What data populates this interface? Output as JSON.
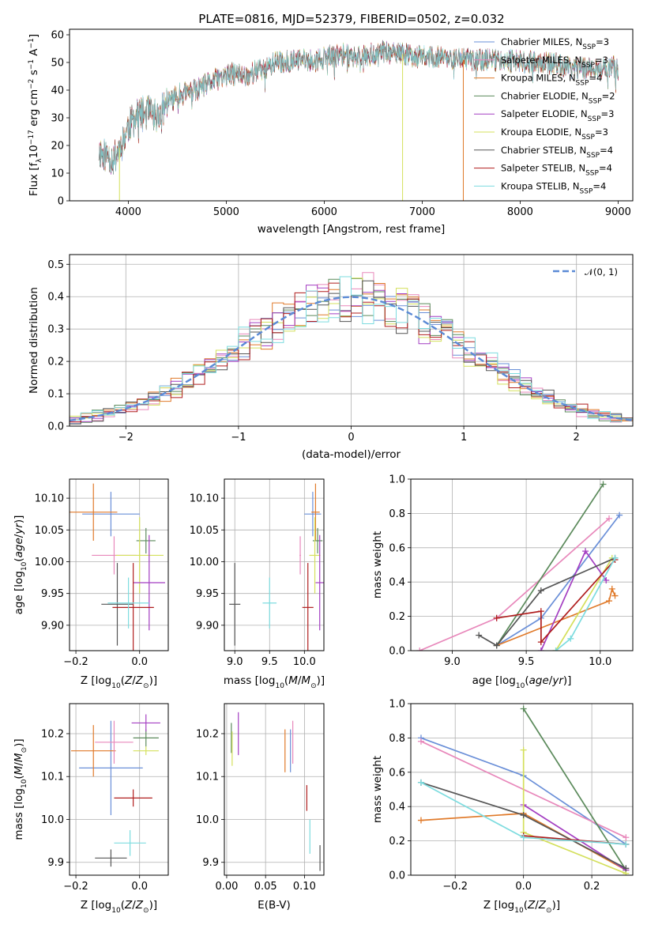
{
  "figure_title": "PLATE=0816, MJD=52379, FIBERID=0502, z=0.032",
  "colors": {
    "Chabrier MILES": "#6a8fd8",
    "Salpeter MILES": "#e888bb",
    "Kroupa MILES": "#e07a2a",
    "Chabrier ELODIE": "#5b8a5b",
    "Salpeter ELODIE": "#a43fc2",
    "Kroupa ELODIE": "#d4e05c",
    "Chabrier STELIB": "#555555",
    "Salpeter STELIB": "#b01e1e",
    "Kroupa STELIB": "#7ddcdf"
  },
  "chart_data": [
    {
      "id": "spectrum",
      "type": "line",
      "title": "PLATE=0816, MJD=52379, FIBERID=0502, z=0.032",
      "xlabel": "wavelength [Angstrom, rest frame]",
      "ylabel": "Flux [fλ10⁻¹⁷ erg cm⁻² s⁻¹ A⁻¹]",
      "xlim": [
        3400,
        9150
      ],
      "ylim": [
        0,
        62
      ],
      "xticks": [
        4000,
        5000,
        6000,
        7000,
        8000,
        9000
      ],
      "yticks": [
        0,
        10,
        20,
        30,
        40,
        50,
        60
      ],
      "legend_position": "upper right",
      "legend": [
        {
          "label": "Chabrier MILES, N",
          "sub": "SSP",
          "suffix": "=3"
        },
        {
          "label": "Salpeter MILES, N",
          "sub": "SSP",
          "suffix": "=3"
        },
        {
          "label": "Kroupa MILES, N",
          "sub": "SSP",
          "suffix": "=4"
        },
        {
          "label": "Chabrier ELODIE, N",
          "sub": "SSP",
          "suffix": "=2"
        },
        {
          "label": "Salpeter ELODIE, N",
          "sub": "SSP",
          "suffix": "=3"
        },
        {
          "label": "Kroupa ELODIE, N",
          "sub": "SSP",
          "suffix": "=3"
        },
        {
          "label": "Chabrier STELIB, N",
          "sub": "SSP",
          "suffix": "=4"
        },
        {
          "label": "Salpeter STELIB, N",
          "sub": "SSP",
          "suffix": "=4"
        },
        {
          "label": "Kroupa STELIB, N",
          "sub": "SSP",
          "suffix": "=4"
        }
      ],
      "continuum": [
        [
          3700,
          18
        ],
        [
          3850,
          15
        ],
        [
          3950,
          22
        ],
        [
          4000,
          27
        ],
        [
          4100,
          31
        ],
        [
          4200,
          32
        ],
        [
          4300,
          30
        ],
        [
          4400,
          36
        ],
        [
          4500,
          38
        ],
        [
          4600,
          39
        ],
        [
          4700,
          40
        ],
        [
          4800,
          42
        ],
        [
          4900,
          44
        ],
        [
          5000,
          45
        ],
        [
          5100,
          46
        ],
        [
          5200,
          45
        ],
        [
          5300,
          47
        ],
        [
          5400,
          48
        ],
        [
          5500,
          50
        ],
        [
          5600,
          50
        ],
        [
          5700,
          51
        ],
        [
          5800,
          51
        ],
        [
          5900,
          50
        ],
        [
          6000,
          52
        ],
        [
          6100,
          52
        ],
        [
          6200,
          53
        ],
        [
          6300,
          52
        ],
        [
          6400,
          53
        ],
        [
          6500,
          53
        ],
        [
          6600,
          54
        ],
        [
          6700,
          53
        ],
        [
          6800,
          53
        ],
        [
          7000,
          52
        ],
        [
          7200,
          52
        ],
        [
          7400,
          51
        ],
        [
          7600,
          51
        ],
        [
          7800,
          51
        ],
        [
          8000,
          50
        ],
        [
          8200,
          50
        ],
        [
          8400,
          49
        ],
        [
          8600,
          48
        ],
        [
          8800,
          48
        ],
        [
          9000,
          48
        ]
      ],
      "drop_features": [
        {
          "series": "Kroupa ELODIE",
          "x": 3910
        },
        {
          "series": "Kroupa ELODIE",
          "x": 6800
        },
        {
          "series": "Kroupa MILES",
          "x": 7420
        }
      ]
    },
    {
      "id": "residuals",
      "type": "histogram",
      "xlabel": "(data-model)/error",
      "ylabel": "Normed distribution",
      "xlim": [
        -2.5,
        2.5
      ],
      "ylim": [
        0,
        0.53
      ],
      "xticks": [
        -2,
        -1,
        0,
        1,
        2
      ],
      "yticks": [
        0.0,
        0.1,
        0.2,
        0.3,
        0.4,
        0.5
      ],
      "bin_width": 0.1,
      "legend_position": "upper right",
      "reference_curve": {
        "label": "𝒩(0, 1)",
        "mean": 0,
        "sigma": 1
      },
      "series_note": "one step histogram per fit, colors as in legend of spectrum panel"
    },
    {
      "id": "age_vs_Z",
      "type": "scatter",
      "xlabel": "Z [log10(Z/Z⊙)]",
      "ylabel": "age  [log10(age/yr)]",
      "xlim": [
        -0.22,
        0.09
      ],
      "ylim": [
        9.86,
        10.13
      ],
      "xticks": [
        -0.2,
        0.0
      ],
      "yticks": [
        9.9,
        9.95,
        10.0,
        10.05,
        10.1
      ],
      "points": [
        {
          "series": "Chabrier MILES",
          "x": -0.09,
          "y": 10.075,
          "xerr": 0.09,
          "yerr": 0.035
        },
        {
          "series": "Kroupa MILES",
          "x": -0.145,
          "y": 10.078,
          "xerr": 0.075,
          "yerr": 0.045
        },
        {
          "series": "Salpeter MILES",
          "x": -0.08,
          "y": 10.01,
          "xerr": 0.07,
          "yerr": 0.03
        },
        {
          "series": "Chabrier ELODIE",
          "x": 0.02,
          "y": 10.033,
          "xerr": 0.03,
          "yerr": 0.02
        },
        {
          "series": "Kroupa ELODIE",
          "x": 0.0,
          "y": 10.01,
          "xerr": 0.075,
          "yerr": 0.06
        },
        {
          "series": "Salpeter ELODIE",
          "x": 0.03,
          "y": 9.967,
          "xerr": 0.05,
          "yerr": 0.075
        },
        {
          "series": "Chabrier STELIB",
          "x": -0.07,
          "y": 9.933,
          "xerr": 0.05,
          "yerr": 0.065
        },
        {
          "series": "Salpeter STELIB",
          "x": -0.02,
          "y": 9.928,
          "xerr": 0.065,
          "yerr": 0.07
        },
        {
          "series": "Kroupa STELIB",
          "x": -0.035,
          "y": 9.935,
          "xerr": 0.065,
          "yerr": 0.04
        }
      ]
    },
    {
      "id": "age_vs_mass",
      "type": "scatter",
      "xlabel": "mass [log10(M/M⊙)]",
      "ylabel": "",
      "xlim": [
        8.85,
        10.28
      ],
      "ylim": [
        9.86,
        10.13
      ],
      "xticks": [
        9.0,
        9.5,
        10.0
      ],
      "yticks": [
        9.9,
        9.95,
        10.0,
        10.05,
        10.1
      ],
      "points": [
        {
          "series": "Chabrier MILES",
          "x": 10.12,
          "y": 10.075,
          "xerr": 0.12,
          "yerr": 0.035
        },
        {
          "series": "Kroupa MILES",
          "x": 10.16,
          "y": 10.078,
          "xerr": 0.06,
          "yerr": 0.045
        },
        {
          "series": "Salpeter MILES",
          "x": 9.94,
          "y": 10.01,
          "xerr": 0.01,
          "yerr": 0.03
        },
        {
          "series": "Chabrier ELODIE",
          "x": 10.19,
          "y": 10.033,
          "xerr": 0.07,
          "yerr": 0.02
        },
        {
          "series": "Kroupa ELODIE",
          "x": 10.15,
          "y": 10.01,
          "xerr": 0.08,
          "yerr": 0.06
        },
        {
          "series": "Salpeter ELODIE",
          "x": 10.22,
          "y": 9.967,
          "xerr": 0.06,
          "yerr": 0.075
        },
        {
          "series": "Chabrier STELIB",
          "x": 9.0,
          "y": 9.933,
          "xerr": 0.08,
          "yerr": 0.065
        },
        {
          "series": "Salpeter STELIB",
          "x": 10.05,
          "y": 9.928,
          "xerr": 0.08,
          "yerr": 0.07
        },
        {
          "series": "Kroupa STELIB",
          "x": 9.5,
          "y": 9.935,
          "xerr": 0.1,
          "yerr": 0.04
        }
      ]
    },
    {
      "id": "weight_vs_age",
      "type": "line",
      "xlabel": "age  [log10(age/yr)]",
      "ylabel": "mass weight",
      "xlim": [
        8.72,
        10.22
      ],
      "ylim": [
        0.0,
        1.0
      ],
      "xticks": [
        9.0,
        9.5,
        10.0
      ],
      "yticks": [
        0.0,
        0.2,
        0.4,
        0.6,
        0.8,
        1.0
      ],
      "series": [
        {
          "name": "Chabrier MILES",
          "x": [
            9.3,
            9.6,
            10.13
          ],
          "y": [
            0.03,
            0.19,
            0.79
          ]
        },
        {
          "name": "Salpeter MILES",
          "x": [
            8.78,
            9.3,
            10.06
          ],
          "y": [
            0.0,
            0.19,
            0.77
          ]
        },
        {
          "name": "Kroupa MILES",
          "x": [
            9.3,
            10.06,
            10.08,
            10.1
          ],
          "y": [
            0.03,
            0.29,
            0.36,
            0.32
          ]
        },
        {
          "name": "Chabrier ELODIE",
          "x": [
            9.3,
            10.02
          ],
          "y": [
            0.03,
            0.97
          ]
        },
        {
          "name": "Salpeter ELODIE",
          "x": [
            9.6,
            9.9,
            10.04
          ],
          "y": [
            0.0,
            0.58,
            0.41
          ]
        },
        {
          "name": "Kroupa ELODIE",
          "x": [
            9.7,
            10.08
          ],
          "y": [
            0.0,
            0.54
          ]
        },
        {
          "name": "Chabrier STELIB",
          "x": [
            9.18,
            9.3,
            9.6,
            10.1
          ],
          "y": [
            0.09,
            0.03,
            0.35,
            0.54
          ]
        },
        {
          "name": "Salpeter STELIB",
          "x": [
            9.3,
            9.6,
            9.6,
            10.1
          ],
          "y": [
            0.19,
            0.23,
            0.05,
            0.53
          ]
        },
        {
          "name": "Kroupa STELIB",
          "x": [
            9.7,
            9.8,
            10.1
          ],
          "y": [
            0.0,
            0.07,
            0.54
          ]
        }
      ]
    },
    {
      "id": "mass_vs_Z",
      "type": "scatter",
      "xlabel": "Z [log10(Z/Z⊙)]",
      "ylabel": "mass [log10(M/M⊙)]",
      "xlim": [
        -0.22,
        0.09
      ],
      "ylim": [
        9.87,
        10.27
      ],
      "xticks": [
        -0.2,
        0.0
      ],
      "yticks": [
        9.9,
        10.0,
        10.1,
        10.2
      ],
      "points": [
        {
          "series": "Chabrier MILES",
          "x": -0.09,
          "y": 10.12,
          "xerr": 0.1,
          "yerr": 0.11
        },
        {
          "series": "Kroupa MILES",
          "x": -0.145,
          "y": 10.16,
          "xerr": 0.07,
          "yerr": 0.06
        },
        {
          "series": "Salpeter MILES",
          "x": -0.08,
          "y": 10.18,
          "xerr": 0.06,
          "yerr": 0.05
        },
        {
          "series": "Chabrier ELODIE",
          "x": 0.02,
          "y": 10.19,
          "xerr": 0.04,
          "yerr": 0.02
        },
        {
          "series": "Kroupa ELODIE",
          "x": 0.02,
          "y": 10.16,
          "xerr": 0.04,
          "yerr": 0.01
        },
        {
          "series": "Salpeter ELODIE",
          "x": 0.02,
          "y": 10.225,
          "xerr": 0.045,
          "yerr": 0.02
        },
        {
          "series": "Chabrier STELIB",
          "x": -0.09,
          "y": 9.91,
          "xerr": 0.05,
          "yerr": 0.02
        },
        {
          "series": "Salpeter STELIB",
          "x": -0.02,
          "y": 10.05,
          "xerr": 0.06,
          "yerr": 0.02
        },
        {
          "series": "Kroupa STELIB",
          "x": -0.03,
          "y": 9.945,
          "xerr": 0.05,
          "yerr": 0.03
        }
      ]
    },
    {
      "id": "mass_vs_EBV",
      "type": "scatter",
      "xlabel": "E(B-V)",
      "ylabel": "",
      "xlim": [
        -0.003,
        0.125
      ],
      "ylim": [
        9.87,
        10.27
      ],
      "xticks": [
        0.0,
        0.05,
        0.1
      ],
      "yticks": [
        9.9,
        10.0,
        10.1,
        10.2
      ],
      "points": [
        {
          "series": "Chabrier MILES",
          "x": 0.082,
          "y": 10.16,
          "xerr": 0.0,
          "yerr": 0.05
        },
        {
          "series": "Kroupa MILES",
          "x": 0.075,
          "y": 10.16,
          "xerr": 0.0,
          "yerr": 0.05
        },
        {
          "series": "Salpeter MILES",
          "x": 0.085,
          "y": 10.18,
          "xerr": 0.0,
          "yerr": 0.05
        },
        {
          "series": "Chabrier ELODIE",
          "x": 0.006,
          "y": 10.19,
          "xerr": 0.0,
          "yerr": 0.035
        },
        {
          "series": "Kroupa ELODIE",
          "x": 0.007,
          "y": 10.165,
          "xerr": 0.0,
          "yerr": 0.04
        },
        {
          "series": "Salpeter ELODIE",
          "x": 0.015,
          "y": 10.2,
          "xerr": 0.0,
          "yerr": 0.05
        },
        {
          "series": "Chabrier STELIB",
          "x": 0.12,
          "y": 9.91,
          "xerr": 0.0,
          "yerr": 0.03
        },
        {
          "series": "Salpeter STELIB",
          "x": 0.103,
          "y": 10.05,
          "xerr": 0.0,
          "yerr": 0.03
        },
        {
          "series": "Kroupa STELIB",
          "x": 0.107,
          "y": 9.96,
          "xerr": 0.0,
          "yerr": 0.04
        }
      ]
    },
    {
      "id": "weight_vs_Z",
      "type": "line",
      "xlabel": "Z [log10(Z/Z⊙)]",
      "ylabel": "mass weight",
      "xlim": [
        -0.33,
        0.32
      ],
      "ylim": [
        0.0,
        1.0
      ],
      "xticks": [
        -0.2,
        0.0,
        0.2
      ],
      "yticks": [
        0.0,
        0.2,
        0.4,
        0.6,
        0.8,
        1.0
      ],
      "series": [
        {
          "name": "Chabrier MILES",
          "x": [
            -0.3,
            0.0,
            0.3
          ],
          "y": [
            0.8,
            0.58,
            0.18
          ]
        },
        {
          "name": "Salpeter MILES",
          "x": [
            -0.3,
            0.3
          ],
          "y": [
            0.78,
            0.22
          ]
        },
        {
          "name": "Kroupa MILES",
          "x": [
            -0.3,
            0.0,
            0.3
          ],
          "y": [
            0.32,
            0.36,
            0.03
          ]
        },
        {
          "name": "Chabrier ELODIE",
          "x": [
            0.0,
            0.3
          ],
          "y": [
            0.97,
            0.03
          ]
        },
        {
          "name": "Salpeter ELODIE",
          "x": [
            0.0,
            0.3
          ],
          "y": [
            0.41,
            0.03
          ]
        },
        {
          "name": "Kroupa ELODIE",
          "x": [
            0.0,
            0.0,
            0.3
          ],
          "y": [
            0.73,
            0.25,
            0.01
          ]
        },
        {
          "name": "Chabrier STELIB",
          "x": [
            -0.3,
            0.0,
            0.3
          ],
          "y": [
            0.54,
            0.35,
            0.04
          ]
        },
        {
          "name": "Salpeter STELIB",
          "x": [
            0.0,
            0.3
          ],
          "y": [
            0.23,
            0.18
          ]
        },
        {
          "name": "Kroupa STELIB",
          "x": [
            -0.3,
            0.0,
            0.3
          ],
          "y": [
            0.54,
            0.22,
            0.18
          ]
        }
      ]
    }
  ]
}
